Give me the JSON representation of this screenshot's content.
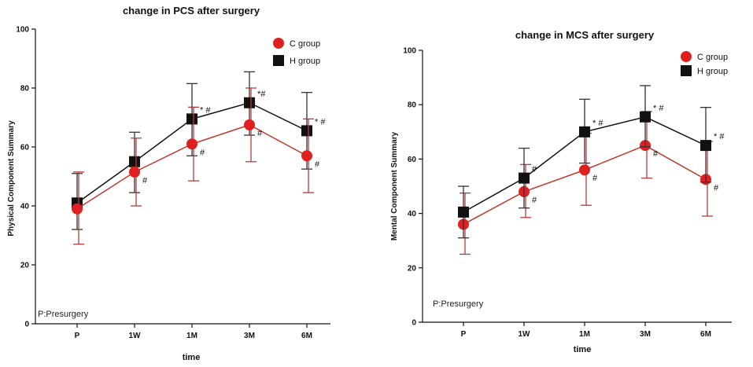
{
  "chart_data": [
    {
      "type": "line",
      "title": "change in PCS after surgery",
      "xlabel": "time",
      "ylabel": "Physical Component Summary",
      "categories": [
        "P",
        "1W",
        "1M",
        "3M",
        "6M"
      ],
      "ylim": [
        0,
        100
      ],
      "yticks": [
        "0",
        "20",
        "40",
        "60",
        "80",
        "100"
      ],
      "yticks_values": [
        0,
        20,
        40,
        60,
        80,
        100
      ],
      "note": "P:Presurgery",
      "legend_position": "top-right",
      "series": [
        {
          "name": "H group",
          "color": "#111111",
          "marker": "square",
          "values": [
            41,
            55,
            69.5,
            75,
            65.5
          ],
          "error_upper": [
            51,
            65,
            81.5,
            85.5,
            78.5
          ],
          "error_lower": [
            32,
            44.5,
            57,
            64,
            52.5
          ],
          "annotations": [
            "",
            "",
            "* #",
            "*#",
            "* #"
          ]
        },
        {
          "name": "C group",
          "color": "#e02020",
          "marker": "circle",
          "values": [
            39,
            51.5,
            61,
            67.5,
            57
          ],
          "error_upper": [
            51.5,
            63,
            73.5,
            80,
            69.5
          ],
          "error_lower": [
            27,
            40,
            48.5,
            55,
            44.5
          ],
          "annotations": [
            "",
            "#",
            "#",
            "#",
            "#"
          ]
        }
      ]
    },
    {
      "type": "line",
      "title": "change in MCS after surgery",
      "xlabel": "time",
      "ylabel": "Mental Component Summary",
      "categories": [
        "P",
        "1W",
        "1M",
        "3M",
        "6M"
      ],
      "ylim": [
        0,
        100
      ],
      "yticks": [
        "0",
        "20",
        "40",
        "60",
        "80",
        "100"
      ],
      "yticks_values": [
        0,
        20,
        40,
        60,
        80,
        100
      ],
      "note": "P:Presurgery",
      "legend_position": "top-right",
      "series": [
        {
          "name": "C group",
          "color": "#e02020",
          "marker": "circle",
          "values": [
            36,
            48,
            56,
            65,
            52.5
          ],
          "error_upper": [
            47.5,
            58,
            69.5,
            77.5,
            66.5
          ],
          "error_lower": [
            25,
            38.5,
            43,
            53,
            39
          ],
          "annotations": [
            "",
            "#",
            "#",
            "#",
            "#"
          ]
        },
        {
          "name": "H group",
          "color": "#111111",
          "marker": "square",
          "values": [
            40.5,
            53,
            70,
            75.5,
            65
          ],
          "error_upper": [
            50,
            64,
            82,
            87,
            79
          ],
          "error_lower": [
            31,
            42,
            58.5,
            64.5,
            51.5
          ],
          "annotations": [
            "",
            "#",
            "* #",
            "* #",
            "* #"
          ]
        }
      ]
    }
  ]
}
